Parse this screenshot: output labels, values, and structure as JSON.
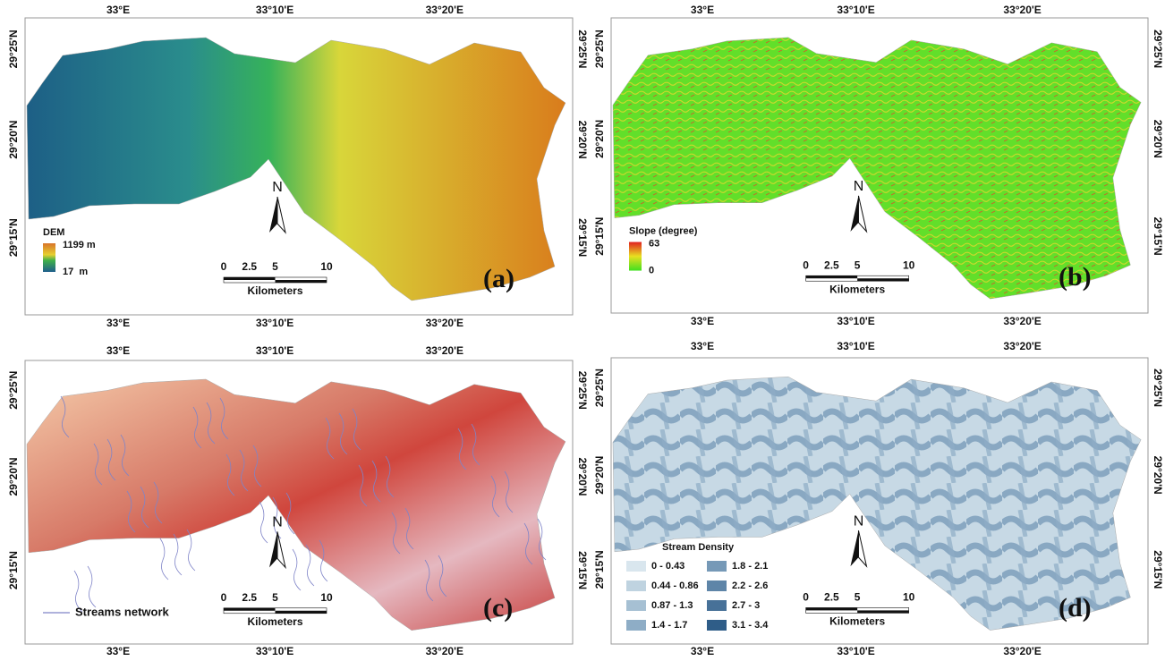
{
  "panels": [
    {
      "top_labels": [
        "33°E",
        "33°10'E",
        "33°20'E"
      ],
      "bottom_labels": [
        "33°E",
        "33°10'E",
        "33°20'E"
      ],
      "left_labels": [
        "29°25'N",
        "29°20'N",
        "29°15'N"
      ],
      "right_labels": [
        "29°25'N",
        "29°20'N",
        "29°15'N"
      ],
      "north": "N",
      "scale_labels": [
        "0",
        "2.5",
        "5",
        "10"
      ],
      "scale_unit": "Kilometers",
      "panel_label": "(a)",
      "legend": {
        "title": "DEM",
        "max": "1199 m",
        "min": "17  m"
      }
    },
    {
      "top_labels": [
        "33°E",
        "33°10'E",
        "33°20'E"
      ],
      "bottom_labels": [
        "33°E",
        "33°10'E",
        "33°20'E"
      ],
      "left_labels": [
        "29°25'N",
        "29°20'N",
        "29°15'N"
      ],
      "right_labels": [
        "29°25'N",
        "29°20'N",
        "29°15'N"
      ],
      "north": "N",
      "scale_labels": [
        "0",
        "2.5",
        "5",
        "10"
      ],
      "scale_unit": "Kilometers",
      "panel_label": "(b)",
      "legend": {
        "title": "Slope (degree)",
        "max": "63",
        "min": "0"
      }
    },
    {
      "top_labels": [
        "33°E",
        "33°10'E",
        "33°20'E"
      ],
      "bottom_labels": [
        "33°E",
        "33°10'E",
        "33°20'E"
      ],
      "left_labels": [
        "29°25'N",
        "29°20'N",
        "29°15'N"
      ],
      "right_labels": [
        "29°25'N",
        "29°20'N",
        "29°15'N"
      ],
      "north": "N",
      "scale_labels": [
        "0",
        "2.5",
        "5",
        "10"
      ],
      "scale_unit": "Kilometers",
      "panel_label": "(c)",
      "legend": {
        "label": "Streams network"
      }
    },
    {
      "top_labels": [
        "33°E",
        "33°10'E",
        "33°20'E"
      ],
      "bottom_labels": [
        "33°E",
        "33°10'E",
        "33°20'E"
      ],
      "left_labels": [
        "29°25'N",
        "29°20'N",
        "29°15'N"
      ],
      "right_labels": [
        "29°25'N",
        "29°20'N",
        "29°15'N"
      ],
      "north": "N",
      "scale_labels": [
        "0",
        "2.5",
        "5",
        "10"
      ],
      "scale_unit": "Kilometers",
      "panel_label": "(d)",
      "legend": {
        "title": "Stream Density",
        "items": [
          {
            "label": "0 - 0.43",
            "color": "#d9e6ee"
          },
          {
            "label": "0.44 - 0.86",
            "color": "#bfd3e0"
          },
          {
            "label": "0.87 - 1.3",
            "color": "#a6c0d3"
          },
          {
            "label": "1.4 - 1.7",
            "color": "#8eadc6"
          },
          {
            "label": "1.8 - 2.1",
            "color": "#7699b7"
          },
          {
            "label": "2.2 - 2.6",
            "color": "#5e85a8"
          },
          {
            "label": "2.7 - 3",
            "color": "#477198"
          },
          {
            "label": "3.1 - 3.4",
            "color": "#2f5d88"
          }
        ]
      }
    }
  ]
}
